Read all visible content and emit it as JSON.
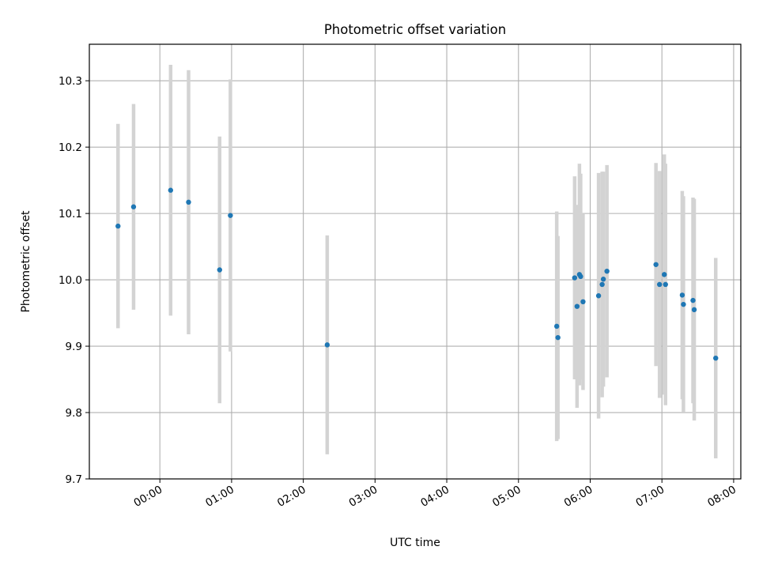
{
  "chart_data": {
    "type": "scatter",
    "title": "Photometric offset variation",
    "xlabel": "UTC time",
    "ylabel": "Photometric offset",
    "x_tick_labels": [
      "00:00",
      "01:00",
      "02:00",
      "03:00",
      "04:00",
      "05:00",
      "06:00",
      "07:00",
      "08:00"
    ],
    "y_tick_labels": [
      "9.7",
      "9.8",
      "9.9",
      "10.0",
      "10.1",
      "10.2",
      "10.3"
    ],
    "xlim": [
      "-00:59",
      "08:06"
    ],
    "ylim": [
      9.7,
      10.355
    ],
    "grid": true,
    "colors": {
      "points": "#1f77b4",
      "error_bars": "#d3d3d3",
      "grid": "#b0b0b0"
    },
    "series": [
      {
        "points": [
          {
            "x": "-00:35",
            "y": 10.081,
            "err": 0.154
          },
          {
            "x": "-00:22",
            "y": 10.11,
            "err": 0.155
          },
          {
            "x": "00:09",
            "y": 10.135,
            "err": 0.189
          },
          {
            "x": "00:24",
            "y": 10.117,
            "err": 0.199
          },
          {
            "x": "00:50",
            "y": 10.015,
            "err": 0.201
          },
          {
            "x": "00:59",
            "y": 10.097,
            "err": 0.205
          },
          {
            "x": "02:20",
            "y": 9.902,
            "err": 0.165
          },
          {
            "x": "05:32",
            "y": 9.93,
            "err": 0.173
          },
          {
            "x": "05:33",
            "y": 9.913,
            "err": 0.153
          },
          {
            "x": "05:47",
            "y": 10.003,
            "err": 0.153
          },
          {
            "x": "05:49",
            "y": 9.96,
            "err": 0.153
          },
          {
            "x": "05:51",
            "y": 10.008,
            "err": 0.167
          },
          {
            "x": "05:52",
            "y": 10.005,
            "err": 0.155
          },
          {
            "x": "05:54",
            "y": 9.967,
            "err": 0.133
          },
          {
            "x": "06:07",
            "y": 9.976,
            "err": 0.185
          },
          {
            "x": "06:10",
            "y": 9.993,
            "err": 0.17
          },
          {
            "x": "06:11",
            "y": 10.001,
            "err": 0.162
          },
          {
            "x": "06:14",
            "y": 10.013,
            "err": 0.16
          },
          {
            "x": "06:55",
            "y": 10.023,
            "err": 0.153
          },
          {
            "x": "06:58",
            "y": 9.993,
            "err": 0.171
          },
          {
            "x": "07:02",
            "y": 10.008,
            "err": 0.181
          },
          {
            "x": "07:03",
            "y": 9.993,
            "err": 0.182
          },
          {
            "x": "07:17",
            "y": 9.977,
            "err": 0.157
          },
          {
            "x": "07:18",
            "y": 9.963,
            "err": 0.163
          },
          {
            "x": "07:26",
            "y": 9.969,
            "err": 0.155
          },
          {
            "x": "07:27",
            "y": 9.955,
            "err": 0.167
          },
          {
            "x": "07:45",
            "y": 9.882,
            "err": 0.151
          }
        ]
      }
    ]
  }
}
